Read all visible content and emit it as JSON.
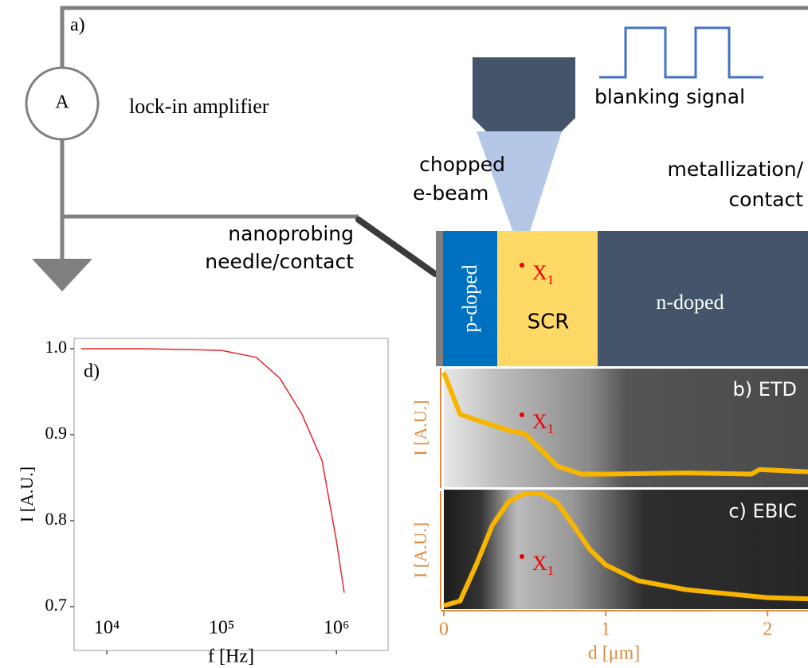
{
  "diagram": {
    "panel_label": "a)",
    "ammeter": "A",
    "amplifier": "lock-in amplifier",
    "blanking": "blanking signal",
    "beam": [
      "chopped",
      "e-beam"
    ],
    "metal": [
      "metallization/",
      "contact"
    ],
    "needle": [
      "nanoprobing",
      "needle/contact"
    ],
    "regions": [
      "p-doped",
      "SCR",
      "n-doped"
    ],
    "point": {
      "name": "X",
      "sub": "1"
    }
  },
  "chart_data": [
    {
      "type": "line",
      "label": "d)",
      "xlabel": "f [Hz]",
      "ylabel": "I [A.U.]",
      "log_x": true,
      "color": "#e8262b",
      "x": [
        6000,
        10000,
        20000,
        50000,
        100000,
        200000,
        320000,
        500000,
        750000,
        1000000,
        1170000
      ],
      "values": [
        1.0,
        1.0,
        1.0,
        0.999,
        0.998,
        0.99,
        0.966,
        0.924,
        0.87,
        0.777,
        0.716
      ],
      "xlim": [
        5190,
        2820000
      ],
      "ylim": [
        0.649,
        1.012
      ],
      "xticks": [
        {
          "value": 10000,
          "label": "10⁴"
        },
        {
          "value": 100000,
          "label": "10⁵"
        },
        {
          "value": 1000000,
          "label": "10⁶"
        }
      ],
      "yticks": [
        0.7,
        0.8,
        0.9,
        {
          "value": 1,
          "label": "1.0"
        }
      ]
    },
    {
      "type": "line",
      "label": "b) ETD",
      "ylabel": "I [A.U.]",
      "color": "#f7b500",
      "x": [
        0,
        0.1,
        0.2,
        0.4,
        0.5,
        0.6,
        0.7,
        0.85,
        1,
        1.5,
        1.9,
        1.95,
        2.25
      ],
      "values": [
        0.98,
        0.62,
        0.57,
        0.48,
        0.45,
        0.31,
        0.17,
        0.1,
        0.1,
        0.11,
        0.1,
        0.14,
        0.12
      ],
      "xlim": [
        0,
        2.25
      ],
      "ylim": [
        0,
        1
      ]
    },
    {
      "type": "line",
      "label": "c) EBIC",
      "ylabel": "I [A.U.]",
      "xlabel": "d [μm]",
      "color": "#f7b500",
      "x": [
        0,
        0.1,
        0.2,
        0.3,
        0.4,
        0.5,
        0.6,
        0.7,
        0.8,
        0.9,
        1.0,
        1.2,
        1.5,
        2.0,
        2.25
      ],
      "values": [
        0.01,
        0.05,
        0.37,
        0.72,
        0.93,
        1.0,
        1.0,
        0.92,
        0.72,
        0.51,
        0.37,
        0.23,
        0.15,
        0.08,
        0.07
      ],
      "xlim": [
        0,
        2.25
      ],
      "ylim": [
        0,
        1
      ],
      "xticks": [
        0,
        1,
        2
      ]
    }
  ]
}
